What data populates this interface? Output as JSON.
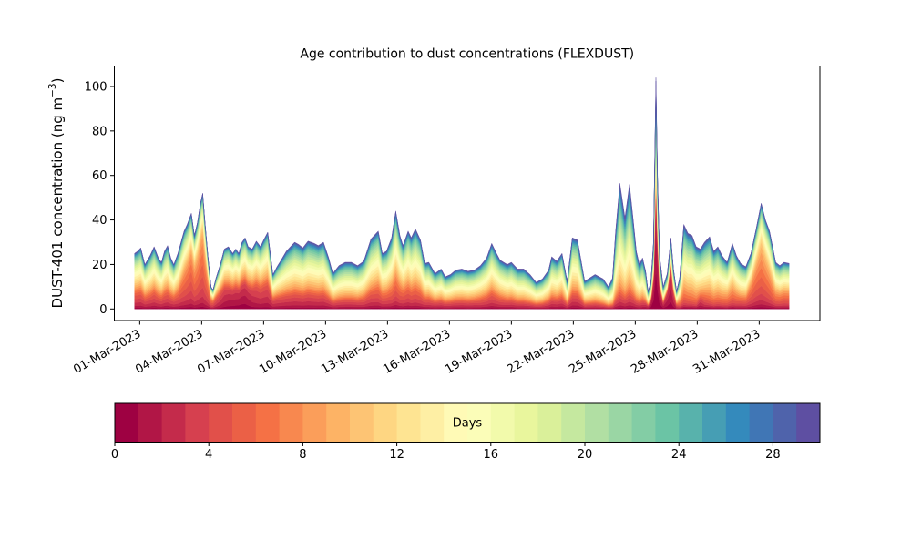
{
  "figure": {
    "background": "#ffffff",
    "title": "Age contribution to dust concentrations (FLEXDUST)",
    "ylabel_prefix": "DUST-401 concentration (ng m",
    "ylabel_superscript": "−3",
    "ylabel_suffix": ")"
  },
  "chart_data": {
    "type": "area",
    "subtype": "stacked-area-by-age",
    "title": "Age contribution to dust concentrations (FLEXDUST)",
    "xlabel": "",
    "ylabel": "DUST-401 concentration (ng m⁻³)",
    "grid": false,
    "legend": "colorbar-bottom",
    "x_unit": "days since 01-Mar-2023 00:00 UTC",
    "xlim": [
      -1.23,
      32.94
    ],
    "ylim": [
      -5.2,
      109.2
    ],
    "yticks": [
      0,
      20,
      40,
      60,
      80,
      100
    ],
    "xticks": [
      {
        "day": 0,
        "label": "01-Mar-2023"
      },
      {
        "day": 3,
        "label": "04-Mar-2023"
      },
      {
        "day": 6,
        "label": "07-Mar-2023"
      },
      {
        "day": 9,
        "label": "10-Mar-2023"
      },
      {
        "day": 12,
        "label": "13-Mar-2023"
      },
      {
        "day": 15,
        "label": "16-Mar-2023"
      },
      {
        "day": 18,
        "label": "19-Mar-2023"
      },
      {
        "day": 21,
        "label": "22-Mar-2023"
      },
      {
        "day": 24,
        "label": "25-Mar-2023"
      },
      {
        "day": 27,
        "label": "28-Mar-2023"
      },
      {
        "day": 30,
        "label": "31-Mar-2023"
      }
    ],
    "n_age_bins": 30,
    "colormap": {
      "name": "Spectral",
      "anchors": [
        "#9e0142",
        "#d53e4f",
        "#f46d43",
        "#fdae61",
        "#fee08b",
        "#ffffbf",
        "#e6f598",
        "#abdda4",
        "#66c2a5",
        "#3288bd",
        "#5e4fa2"
      ]
    },
    "age_model": {
      "bg_sigma": 9.0,
      "fresh_sigma_factor": 0.45,
      "fresh_sigma_min": 1.2,
      "note": "layer i thickness = total * ( fresh_frac*N(i;fresh_age) + (1-fresh_frac)*N(i;bg_age) ), age bin 0 (youngest, dark red) stacked at bottom up to bin 29 (oldest, blue)"
    },
    "points_format": [
      "day",
      "total_ng_m3",
      "fresh_frac",
      "fresh_age_days",
      "bg_age_days"
    ],
    "points": [
      [
        -0.25,
        25,
        0.18,
        3.5,
        14
      ],
      [
        -0.1,
        26,
        0.18,
        3.5,
        14
      ],
      [
        0.05,
        27.5,
        0.18,
        3.5,
        14
      ],
      [
        0.25,
        20,
        0.15,
        3.5,
        14
      ],
      [
        0.5,
        24,
        0.15,
        3.5,
        14
      ],
      [
        0.7,
        28,
        0.17,
        3.5,
        14
      ],
      [
        0.9,
        23,
        0.15,
        3.5,
        14
      ],
      [
        1.05,
        21,
        0.15,
        3.5,
        14
      ],
      [
        1.2,
        26,
        0.16,
        3.5,
        14
      ],
      [
        1.35,
        28.5,
        0.16,
        3.5,
        14
      ],
      [
        1.5,
        23,
        0.15,
        3.5,
        14
      ],
      [
        1.65,
        20,
        0.15,
        3.5,
        14
      ],
      [
        1.85,
        25,
        0.18,
        4,
        14
      ],
      [
        2.0,
        30,
        0.25,
        4.5,
        13.5
      ],
      [
        2.15,
        35,
        0.32,
        5,
        13.5
      ],
      [
        2.3,
        38,
        0.38,
        5,
        13.5
      ],
      [
        2.5,
        43,
        0.45,
        5,
        13
      ],
      [
        2.65,
        33,
        0.42,
        5.5,
        13
      ],
      [
        2.8,
        39,
        0.46,
        5.5,
        13
      ],
      [
        2.95,
        48,
        0.52,
        5.5,
        13
      ],
      [
        3.05,
        52,
        0.55,
        5.5,
        13
      ],
      [
        3.15,
        40,
        0.5,
        5.5,
        13
      ],
      [
        3.3,
        24,
        0.42,
        5,
        13
      ],
      [
        3.45,
        10,
        0.32,
        4.5,
        13
      ],
      [
        3.55,
        8.5,
        0.3,
        4,
        13
      ],
      [
        3.7,
        14,
        0.28,
        3.5,
        13
      ],
      [
        3.9,
        20,
        0.28,
        3,
        13
      ],
      [
        4.1,
        27,
        0.28,
        2.5,
        13
      ],
      [
        4.3,
        28,
        0.26,
        2.2,
        13
      ],
      [
        4.5,
        25,
        0.27,
        2,
        13
      ],
      [
        4.65,
        27,
        0.28,
        2,
        13
      ],
      [
        4.8,
        25,
        0.28,
        1.8,
        13
      ],
      [
        4.95,
        30,
        0.3,
        1.8,
        13
      ],
      [
        5.1,
        32,
        0.3,
        1.8,
        13
      ],
      [
        5.25,
        28,
        0.28,
        2,
        13
      ],
      [
        5.45,
        27,
        0.26,
        2.5,
        13
      ],
      [
        5.65,
        30.5,
        0.26,
        3,
        13
      ],
      [
        5.85,
        28,
        0.25,
        3,
        13.5
      ],
      [
        6.0,
        31,
        0.25,
        3,
        13.5
      ],
      [
        6.2,
        34.5,
        0.24,
        3,
        13.5
      ],
      [
        6.45,
        15.5,
        0.2,
        3,
        14
      ],
      [
        6.65,
        19,
        0.18,
        3,
        14
      ],
      [
        6.85,
        22,
        0.17,
        3,
        14.5
      ],
      [
        7.1,
        26,
        0.16,
        3,
        15
      ],
      [
        7.3,
        28,
        0.15,
        3,
        15
      ],
      [
        7.5,
        30,
        0.15,
        3,
        15
      ],
      [
        7.7,
        29,
        0.15,
        3,
        15
      ],
      [
        7.9,
        27.5,
        0.15,
        3,
        15
      ],
      [
        8.15,
        30.5,
        0.15,
        3,
        15
      ],
      [
        8.45,
        29.5,
        0.14,
        3,
        15
      ],
      [
        8.65,
        28.5,
        0.14,
        3,
        15
      ],
      [
        8.9,
        30,
        0.14,
        3,
        15
      ],
      [
        9.15,
        23,
        0.13,
        3,
        15
      ],
      [
        9.35,
        16,
        0.12,
        3,
        15.5
      ],
      [
        9.65,
        19.5,
        0.12,
        3,
        15.5
      ],
      [
        9.95,
        21,
        0.12,
        3,
        15.5
      ],
      [
        10.25,
        21,
        0.12,
        3,
        15.5
      ],
      [
        10.55,
        19.5,
        0.12,
        3,
        15.5
      ],
      [
        10.85,
        21.5,
        0.13,
        3.5,
        15
      ],
      [
        11.2,
        31.5,
        0.15,
        3.5,
        15
      ],
      [
        11.55,
        35,
        0.16,
        4,
        14.5
      ],
      [
        11.75,
        25,
        0.15,
        4,
        14.5
      ],
      [
        11.95,
        26,
        0.15,
        4,
        14.5
      ],
      [
        12.2,
        32,
        0.17,
        4.5,
        14.5
      ],
      [
        12.4,
        44,
        0.18,
        4.5,
        14.5
      ],
      [
        12.6,
        33,
        0.17,
        4.5,
        14.5
      ],
      [
        12.75,
        28.5,
        0.16,
        4,
        14.5
      ],
      [
        13.0,
        35,
        0.16,
        4,
        14.5
      ],
      [
        13.15,
        32,
        0.15,
        4,
        15
      ],
      [
        13.35,
        36,
        0.15,
        4,
        15
      ],
      [
        13.6,
        31,
        0.14,
        4,
        15
      ],
      [
        13.8,
        20.5,
        0.13,
        3.5,
        15
      ],
      [
        14.0,
        21,
        0.13,
        3.5,
        15
      ],
      [
        14.3,
        16,
        0.12,
        3,
        15.5
      ],
      [
        14.6,
        18,
        0.12,
        3,
        15.5
      ],
      [
        14.8,
        14.5,
        0.12,
        3,
        15.5
      ],
      [
        15.05,
        15.5,
        0.12,
        3,
        15.5
      ],
      [
        15.3,
        17.5,
        0.12,
        3,
        15.5
      ],
      [
        15.6,
        18,
        0.12,
        3,
        15.5
      ],
      [
        15.9,
        17,
        0.12,
        3,
        15.5
      ],
      [
        16.2,
        17.5,
        0.12,
        3,
        15
      ],
      [
        16.5,
        19.5,
        0.13,
        3.5,
        15
      ],
      [
        16.8,
        23,
        0.14,
        3.5,
        15
      ],
      [
        17.05,
        29.5,
        0.15,
        3.5,
        15
      ],
      [
        17.25,
        25.5,
        0.14,
        3.5,
        15
      ],
      [
        17.45,
        22,
        0.13,
        3.5,
        15
      ],
      [
        17.8,
        20,
        0.11,
        3,
        15.5
      ],
      [
        18.0,
        21,
        0.11,
        3,
        15.5
      ],
      [
        18.3,
        18,
        0.1,
        3,
        16
      ],
      [
        18.6,
        18,
        0.1,
        3,
        16
      ],
      [
        18.9,
        15.5,
        0.1,
        3,
        16
      ],
      [
        19.2,
        12,
        0.1,
        3,
        16
      ],
      [
        19.5,
        13.5,
        0.1,
        3,
        16
      ],
      [
        19.8,
        17.5,
        0.11,
        3,
        15.5
      ],
      [
        19.95,
        23.5,
        0.12,
        3,
        15.5
      ],
      [
        20.2,
        21.5,
        0.12,
        3,
        15.5
      ],
      [
        20.45,
        25,
        0.12,
        3,
        15
      ],
      [
        20.7,
        12.5,
        0.1,
        3,
        15
      ],
      [
        20.95,
        32,
        0.12,
        3,
        15
      ],
      [
        21.2,
        31,
        0.12,
        3,
        15
      ],
      [
        21.55,
        12.5,
        0.1,
        3,
        15.5
      ],
      [
        21.8,
        14,
        0.1,
        3,
        16
      ],
      [
        22.05,
        15.5,
        0.1,
        3,
        16
      ],
      [
        22.25,
        14.5,
        0.09,
        3,
        16
      ],
      [
        22.45,
        13.5,
        0.08,
        3,
        16.5
      ],
      [
        22.7,
        10,
        0.07,
        3,
        17
      ],
      [
        22.9,
        14,
        0.06,
        3,
        17.5
      ],
      [
        23.05,
        35,
        0.06,
        3,
        17.5
      ],
      [
        23.25,
        56.5,
        0.06,
        3,
        17.5
      ],
      [
        23.5,
        41,
        0.06,
        3,
        17.5
      ],
      [
        23.72,
        56,
        0.06,
        3,
        17.5
      ],
      [
        23.9,
        40,
        0.07,
        3,
        17
      ],
      [
        24.05,
        26,
        0.08,
        3,
        17
      ],
      [
        24.2,
        20,
        0.09,
        3,
        16.5
      ],
      [
        24.35,
        23,
        0.1,
        3,
        16.5
      ],
      [
        24.5,
        17,
        0.12,
        2.5,
        16.5
      ],
      [
        24.62,
        8,
        0.15,
        2,
        16.5
      ],
      [
        24.75,
        12,
        0.3,
        1.6,
        18
      ],
      [
        24.88,
        30,
        0.45,
        1.4,
        20
      ],
      [
        25.0,
        104,
        0.55,
        1.3,
        21
      ],
      [
        25.08,
        60,
        0.52,
        1.4,
        21
      ],
      [
        25.18,
        24,
        0.4,
        1.6,
        20
      ],
      [
        25.35,
        10,
        0.25,
        2,
        17
      ],
      [
        25.55,
        16,
        0.5,
        2,
        20
      ],
      [
        25.72,
        32,
        0.6,
        2,
        20
      ],
      [
        25.85,
        18,
        0.4,
        2.2,
        18
      ],
      [
        26.0,
        8,
        0.18,
        3,
        15.5
      ],
      [
        26.15,
        14,
        0.12,
        5,
        15.5
      ],
      [
        26.35,
        38,
        0.1,
        6,
        16
      ],
      [
        26.55,
        34,
        0.09,
        6,
        16
      ],
      [
        26.75,
        33,
        0.08,
        7,
        15.5
      ],
      [
        26.95,
        28,
        0.08,
        7,
        15.5
      ],
      [
        27.15,
        27,
        0.12,
        2.5,
        15.5
      ],
      [
        27.35,
        30,
        0.09,
        4,
        15.5
      ],
      [
        27.6,
        32.5,
        0.08,
        6,
        15.5
      ],
      [
        27.8,
        26,
        0.08,
        6,
        15.5
      ],
      [
        28.0,
        28,
        0.08,
        6,
        15
      ],
      [
        28.2,
        24,
        0.09,
        6,
        15
      ],
      [
        28.45,
        21,
        0.14,
        6,
        15
      ],
      [
        28.7,
        29.5,
        0.16,
        6,
        15
      ],
      [
        28.9,
        24,
        0.13,
        5,
        15
      ],
      [
        29.1,
        20.5,
        0.12,
        4,
        15
      ],
      [
        29.35,
        19,
        0.12,
        4,
        14.5
      ],
      [
        29.6,
        25,
        0.3,
        5,
        14
      ],
      [
        29.85,
        36,
        0.4,
        5.5,
        13.5
      ],
      [
        30.1,
        47.5,
        0.45,
        6,
        13.5
      ],
      [
        30.3,
        40,
        0.4,
        6,
        13.5
      ],
      [
        30.5,
        35,
        0.32,
        6,
        14
      ],
      [
        30.65,
        28,
        0.26,
        6,
        14
      ],
      [
        30.8,
        21,
        0.2,
        5.5,
        14.5
      ],
      [
        31.0,
        19.5,
        0.18,
        5,
        14.5
      ],
      [
        31.2,
        21,
        0.2,
        5,
        14.5
      ],
      [
        31.45,
        20.5,
        0.2,
        5,
        14.5
      ]
    ],
    "colorbar": {
      "label": "Days",
      "range": [
        0,
        30
      ],
      "n_segments": 30,
      "ticks": [
        0,
        4,
        8,
        12,
        16,
        20,
        24,
        28
      ]
    }
  }
}
